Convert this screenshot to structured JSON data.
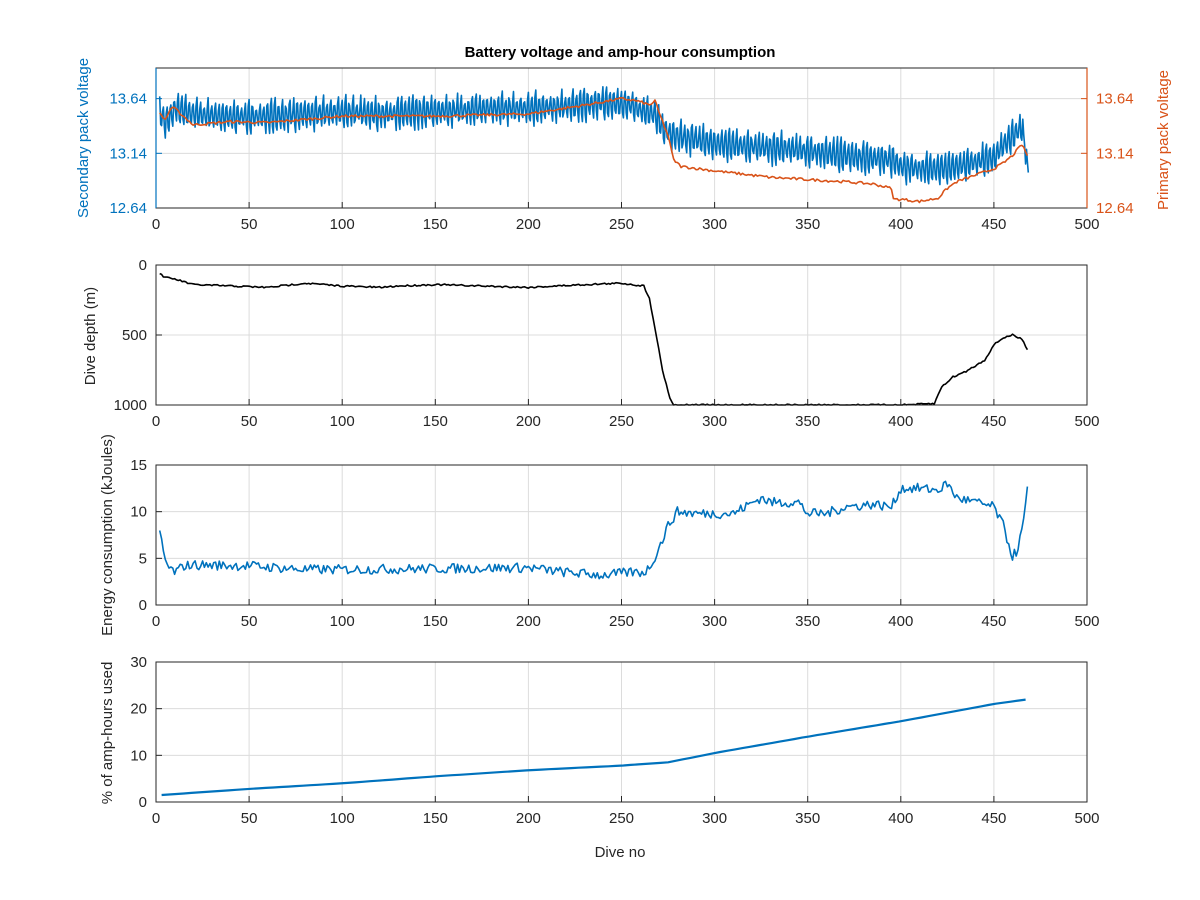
{
  "figure": {
    "title": "Battery voltage and amp-hour consumption",
    "xlabel": "Dive no"
  },
  "colors": {
    "blue": "#0072bd",
    "orange": "#d95319",
    "black": "#000000",
    "grid": "#dcdcdc",
    "axis": "#262626"
  },
  "chart_data": [
    {
      "type": "line",
      "title": "Battery voltage and amp-hour consumption",
      "xlabel": "",
      "ylabel": "Secondary pack voltage",
      "ylabel_right": "Primary pack voltage",
      "xlim": [
        0,
        500
      ],
      "ylim": [
        12.64,
        13.92
      ],
      "xticks": [
        "0",
        "50",
        "100",
        "150",
        "200",
        "250",
        "300",
        "350",
        "400",
        "450",
        "500"
      ],
      "yticks": [
        "12.64",
        "13.14",
        "13.64"
      ],
      "grid": true,
      "series": [
        {
          "axis": "left",
          "color": "#0072bd",
          "noisy": true,
          "x": [
            2,
            5,
            10,
            20,
            40,
            60,
            80,
            100,
            120,
            140,
            160,
            180,
            200,
            220,
            240,
            255,
            262,
            268,
            272,
            278,
            285,
            300,
            320,
            340,
            360,
            380,
            395,
            400,
            410,
            420,
            430,
            440,
            450,
            455,
            460,
            465,
            468
          ],
          "y": [
            13.5,
            13.42,
            13.55,
            13.5,
            13.47,
            13.48,
            13.5,
            13.52,
            13.5,
            13.52,
            13.53,
            13.55,
            13.55,
            13.57,
            13.6,
            13.58,
            13.52,
            13.5,
            13.36,
            13.3,
            13.28,
            13.23,
            13.2,
            13.18,
            13.14,
            13.1,
            13.08,
            13.02,
            13.0,
            13.0,
            13.02,
            13.06,
            13.1,
            13.22,
            13.3,
            13.38,
            13.0
          ]
        },
        {
          "axis": "right",
          "color": "#d95319",
          "noisy": false,
          "x": [
            2,
            5,
            8,
            10,
            20,
            40,
            60,
            80,
            100,
            150,
            200,
            230,
            250,
            258,
            262,
            265,
            268,
            270,
            275,
            278,
            282,
            300,
            330,
            350,
            370,
            385,
            395,
            396,
            400,
            410,
            420,
            425,
            430,
            440,
            450,
            455,
            460,
            465,
            468
          ],
          "y": [
            13.5,
            13.45,
            13.55,
            13.55,
            13.4,
            13.43,
            13.42,
            13.45,
            13.48,
            13.48,
            13.5,
            13.58,
            13.64,
            13.62,
            13.6,
            13.58,
            13.62,
            13.52,
            13.3,
            13.08,
            13.02,
            12.98,
            12.92,
            12.9,
            12.88,
            12.86,
            12.82,
            12.72,
            12.72,
            12.7,
            12.73,
            12.82,
            12.88,
            12.94,
            13.0,
            13.05,
            13.12,
            13.22,
            13.12
          ]
        }
      ]
    },
    {
      "type": "line",
      "xlabel": "",
      "ylabel": "Dive depth (m)",
      "xlim": [
        0,
        500
      ],
      "ylim": [
        1000,
        0
      ],
      "y_reversed": true,
      "xticks": [
        "0",
        "50",
        "100",
        "150",
        "200",
        "250",
        "300",
        "350",
        "400",
        "450",
        "500"
      ],
      "yticks": [
        "0",
        "500",
        "1000"
      ],
      "grid": true,
      "series": [
        {
          "color": "#000000",
          "x": [
            2,
            5,
            10,
            20,
            40,
            60,
            80,
            100,
            120,
            130,
            150,
            200,
            230,
            250,
            262,
            265,
            268,
            272,
            276,
            278,
            280,
            300,
            350,
            400,
            418,
            422,
            428,
            435,
            445,
            450,
            455,
            460,
            465,
            468
          ],
          "y": [
            60,
            90,
            100,
            140,
            150,
            160,
            130,
            150,
            160,
            150,
            140,
            160,
            140,
            130,
            150,
            240,
            450,
            750,
            950,
            1000,
            1000,
            1000,
            1000,
            1000,
            990,
            870,
            800,
            760,
            680,
            570,
            520,
            500,
            530,
            600
          ]
        }
      ]
    },
    {
      "type": "line",
      "xlabel": "",
      "ylabel": "Energy consumption (kJoules)",
      "xlim": [
        0,
        500
      ],
      "ylim": [
        0,
        15
      ],
      "xticks": [
        "0",
        "50",
        "100",
        "150",
        "200",
        "250",
        "300",
        "350",
        "400",
        "450",
        "500"
      ],
      "yticks": [
        "0",
        "5",
        "10",
        "15"
      ],
      "grid": true,
      "series": [
        {
          "color": "#0072bd",
          "noisy": true,
          "x": [
            2,
            4,
            6,
            10,
            15,
            20,
            50,
            80,
            100,
            150,
            200,
            220,
            240,
            255,
            262,
            265,
            270,
            275,
            280,
            290,
            310,
            325,
            330,
            345,
            350,
            360,
            370,
            385,
            395,
            400,
            410,
            420,
            425,
            430,
            440,
            450,
            455,
            460,
            463,
            466,
            468
          ],
          "y": [
            8,
            5.5,
            4.2,
            3.5,
            4.2,
            4.3,
            4.2,
            3.8,
            3.8,
            3.9,
            4.0,
            3.5,
            3.2,
            3.5,
            3.5,
            4.0,
            6.0,
            8.5,
            10.0,
            9.8,
            9.8,
            11.5,
            11.0,
            11.0,
            9.8,
            9.8,
            10.5,
            10.8,
            10.5,
            12.5,
            12.5,
            12.3,
            13.0,
            11.5,
            11.0,
            10.5,
            8.5,
            5.2,
            6.0,
            9.0,
            12.5
          ]
        }
      ]
    },
    {
      "type": "line",
      "xlabel": "Dive no",
      "ylabel": "% of amp-hours used",
      "xlim": [
        0,
        500
      ],
      "ylim": [
        0,
        30
      ],
      "xticks": [
        "0",
        "50",
        "100",
        "150",
        "200",
        "250",
        "300",
        "350",
        "400",
        "450",
        "500"
      ],
      "yticks": [
        "0",
        "10",
        "20",
        "30"
      ],
      "grid": true,
      "series": [
        {
          "color": "#0072bd",
          "x": [
            3,
            50,
            100,
            150,
            200,
            250,
            275,
            300,
            350,
            400,
            450,
            468
          ],
          "y": [
            1.5,
            2.8,
            4.0,
            5.5,
            6.8,
            7.8,
            8.5,
            10.5,
            14.0,
            17.3,
            21.0,
            22.0
          ]
        }
      ]
    }
  ]
}
